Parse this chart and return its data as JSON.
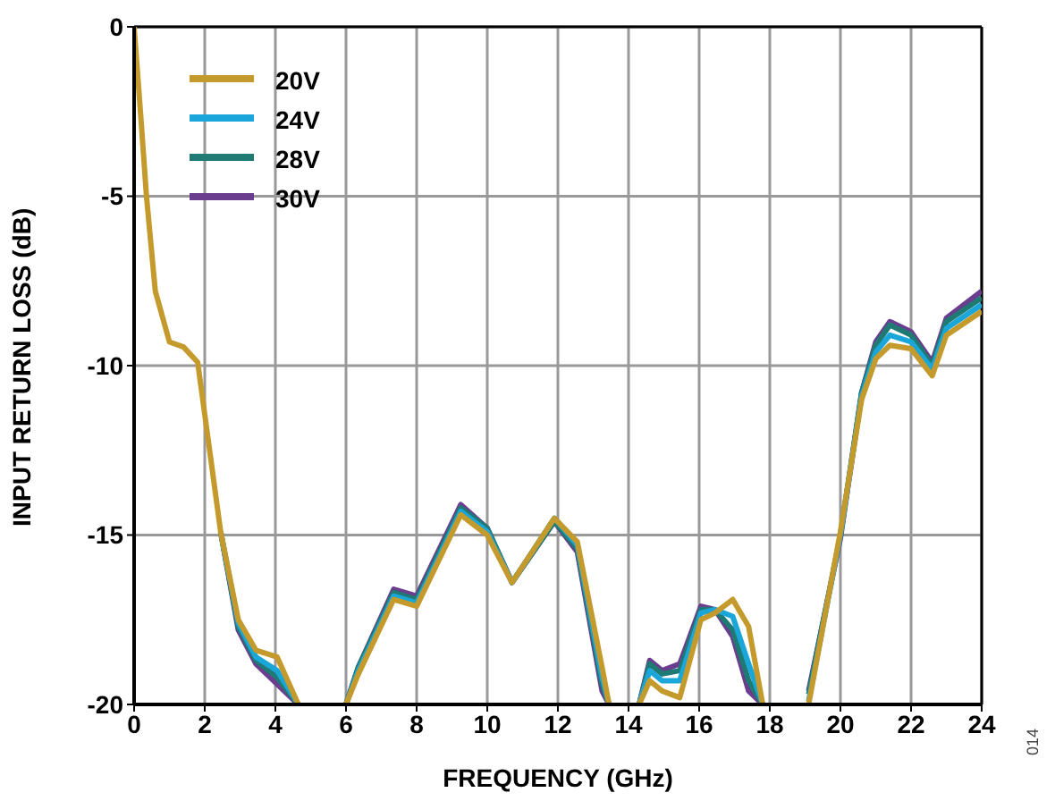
{
  "chart_data": {
    "type": "line",
    "xlabel": "FREQUENCY (GHz)",
    "ylabel": "INPUT RETURN LOSS (dB)",
    "x": [
      0,
      0.2,
      0.35,
      0.6,
      1.0,
      1.4,
      1.8,
      2.45,
      2.95,
      3.45,
      4.05,
      4.65,
      5.3,
      6.0,
      6.35,
      7.35,
      8.0,
      9.25,
      10.0,
      10.7,
      11.9,
      12.55,
      13.25,
      13.45,
      13.9,
      14.3,
      14.6,
      14.95,
      15.45,
      16.05,
      16.45,
      16.95,
      17.4,
      17.8,
      18.5,
      19.1,
      20.0,
      20.6,
      21.0,
      21.4,
      22.0,
      22.6,
      23.0,
      24.0
    ],
    "series": [
      {
        "name": "20V",
        "color": "#c49a2c",
        "values": [
          0,
          -2.8,
          -5.0,
          -7.8,
          -9.3,
          -9.45,
          -9.9,
          -14.9,
          -17.5,
          -18.4,
          -18.6,
          -20,
          null,
          -20,
          -19.1,
          -16.9,
          -17.1,
          -14.4,
          -15.0,
          -16.4,
          -14.5,
          -15.2,
          -18.9,
          -20,
          null,
          -20,
          -19.3,
          -19.6,
          -19.8,
          -17.5,
          -17.3,
          -16.9,
          -17.7,
          -20,
          null,
          -20,
          -14.9,
          -11.0,
          -9.8,
          -9.4,
          -9.5,
          -10.3,
          -9.1,
          -8.4
        ]
      },
      {
        "name": "24V",
        "color": "#1aa6d8",
        "values": [
          null,
          null,
          null,
          null,
          null,
          null,
          null,
          -14.9,
          -17.6,
          -18.6,
          -19.0,
          -20,
          null,
          -20,
          -19.0,
          -16.8,
          -17.0,
          -14.3,
          -14.9,
          -16.4,
          -14.5,
          -15.3,
          -19.2,
          -20,
          null,
          -20,
          -19.0,
          -19.3,
          -19.3,
          -17.3,
          -17.2,
          -17.4,
          -18.8,
          -20,
          null,
          -19.9,
          -15.0,
          -10.9,
          -9.6,
          -9.1,
          -9.3,
          -10.1,
          -8.9,
          -8.2
        ]
      },
      {
        "name": "28V",
        "color": "#1e7a72",
        "values": [
          null,
          null,
          null,
          null,
          null,
          null,
          null,
          -14.9,
          -17.7,
          -18.7,
          -19.2,
          -20,
          null,
          -20,
          -18.9,
          -16.7,
          -16.9,
          -14.2,
          -14.8,
          -16.4,
          -14.6,
          -15.4,
          -19.4,
          -20,
          null,
          -20,
          -18.8,
          -19.1,
          -19.0,
          -17.2,
          -17.2,
          -17.8,
          -19.3,
          -20,
          null,
          -19.7,
          -15.0,
          -10.8,
          -9.4,
          -8.8,
          -9.1,
          -10.0,
          -8.7,
          -8.0
        ]
      },
      {
        "name": "30V",
        "color": "#6a3d8f",
        "values": [
          null,
          null,
          null,
          null,
          null,
          null,
          null,
          -14.9,
          -17.8,
          -18.8,
          -19.4,
          -20,
          null,
          -20,
          -18.9,
          -16.6,
          -16.8,
          -14.1,
          -14.8,
          -16.4,
          -14.6,
          -15.5,
          -19.6,
          -20,
          null,
          -20,
          -18.7,
          -19.0,
          -18.8,
          -17.1,
          -17.2,
          -18.0,
          -19.6,
          -20,
          null,
          -19.6,
          -15.1,
          -10.8,
          -9.3,
          -8.7,
          -9.0,
          -9.9,
          -8.6,
          -7.8
        ]
      }
    ],
    "xlim": [
      0,
      24
    ],
    "xticks": [
      0,
      2,
      4,
      6,
      8,
      10,
      12,
      14,
      16,
      18,
      20,
      22,
      24
    ],
    "ylim": [
      -20,
      0
    ],
    "yticks": [
      -20,
      -15,
      -10,
      -5,
      0
    ],
    "grid": true,
    "legend": "top left",
    "marker": "none",
    "line_style": "solid",
    "annotations": [
      "014"
    ]
  }
}
